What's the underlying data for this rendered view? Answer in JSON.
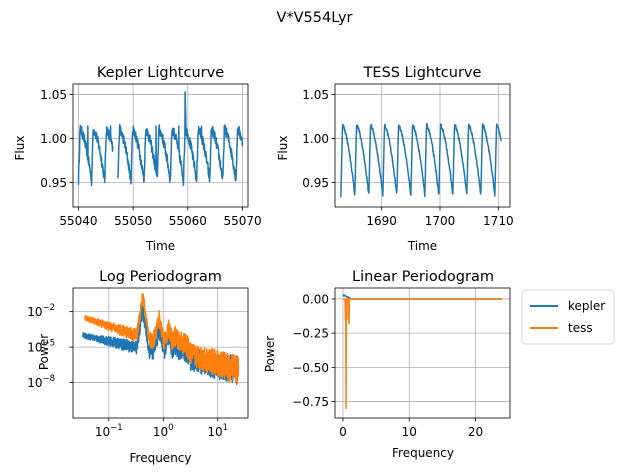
{
  "suptitle": "V*V554Lyr",
  "colors": {
    "kepler": "#1f77b4",
    "tess": "#ff7f0e",
    "grid": "#b0b0b0"
  },
  "legend": {
    "placement": "right of bottom-right panel",
    "entries": [
      "kepler",
      "tess"
    ]
  },
  "chart_data": [
    {
      "id": "kepler_lc",
      "type": "line",
      "title": "Kepler Lightcurve",
      "xlabel": "Time",
      "ylabel": "Flux",
      "xlim": [
        55039,
        55071
      ],
      "ylim": [
        0.922,
        1.062
      ],
      "xticks": [
        {
          "v": 55040,
          "label": "55040"
        },
        {
          "v": 55050,
          "label": "55050"
        },
        {
          "v": 55060,
          "label": "55060"
        },
        {
          "v": 55070,
          "label": "55070"
        }
      ],
      "yticks": [
        {
          "v": 0.95,
          "label": "0.95"
        },
        {
          "v": 1.0,
          "label": "1.00"
        },
        {
          "v": 1.05,
          "label": "1.05"
        }
      ],
      "grid": true,
      "series": [
        {
          "name": "kepler",
          "color": "#1f77b4",
          "period": 2.4,
          "x_start": 55040,
          "x_end": 55070,
          "upper": 1.01,
          "lower": 0.952,
          "spike": {
            "x": 55059.5,
            "y": 1.053
          }
        }
      ]
    },
    {
      "id": "tess_lc",
      "type": "line",
      "title": "TESS Lightcurve",
      "xlabel": "Time",
      "ylabel": "Flux",
      "xlim": [
        1682,
        1712
      ],
      "ylim": [
        0.922,
        1.062
      ],
      "xticks": [
        {
          "v": 1690,
          "label": "1690"
        },
        {
          "v": 1700,
          "label": "1700"
        },
        {
          "v": 1710,
          "label": "1710"
        }
      ],
      "yticks": [
        {
          "v": 0.95,
          "label": "0.95"
        },
        {
          "v": 1.0,
          "label": "1.00"
        },
        {
          "v": 1.05,
          "label": "1.05"
        }
      ],
      "grid": true,
      "series": [
        {
          "name": "tess",
          "color": "#1f77b4",
          "period": 2.4,
          "x_start": 1683,
          "x_end": 1710.5,
          "upper": 1.015,
          "lower": 0.935
        }
      ]
    },
    {
      "id": "log_periodogram",
      "type": "line",
      "title": "Log Periodogram",
      "xlabel": "Frequency",
      "ylabel": "Power",
      "xscale": "log",
      "yscale": "log",
      "xlim": [
        0.022,
        36
      ],
      "ylim": [
        1e-11,
        1
      ],
      "xticks": [
        {
          "v": 0.1,
          "label": "10",
          "exp": "−1"
        },
        {
          "v": 1,
          "label": "10",
          "exp": "0"
        },
        {
          "v": 10,
          "label": "10",
          "exp": "1"
        }
      ],
      "yticks": [
        {
          "v": 0.01,
          "label": "10",
          "exp": "−2"
        },
        {
          "v": 1e-05,
          "label": "10",
          "exp": "−5"
        },
        {
          "v": 1e-08,
          "label": "10",
          "exp": "−8"
        }
      ],
      "grid": true,
      "series": [
        {
          "name": "kepler",
          "color": "#1f77b4",
          "x_start": 0.033,
          "x_end": 24,
          "peak_freq": 0.42,
          "peak_power": 0.02,
          "floor_low": 0.0001,
          "floor_high": 1e-07
        },
        {
          "name": "tess",
          "color": "#ff7f0e",
          "x_start": 0.036,
          "x_end": 24,
          "peak_freq": 0.42,
          "peak_power": 0.3,
          "floor_low": 0.003,
          "floor_high": 1e-07
        }
      ]
    },
    {
      "id": "linear_periodogram",
      "type": "line",
      "title": "Linear Periodogram",
      "xlabel": "Frequency",
      "ylabel": "Power",
      "xlim": [
        -1.2,
        25.2
      ],
      "ylim": [
        -0.87,
        0.08
      ],
      "xticks": [
        {
          "v": 0,
          "label": "0"
        },
        {
          "v": 10,
          "label": "10"
        },
        {
          "v": 20,
          "label": "20"
        }
      ],
      "yticks": [
        {
          "v": 0.0,
          "label": "0.00"
        },
        {
          "v": -0.25,
          "label": "−0.25"
        },
        {
          "v": -0.5,
          "label": "−0.50"
        },
        {
          "v": -0.75,
          "label": "−0.75"
        }
      ],
      "grid": true,
      "series": [
        {
          "name": "kepler",
          "color": "#1f77b4",
          "x_start": 0.0,
          "x_end": 24,
          "baseline": 0.0,
          "max": 0.03
        },
        {
          "name": "tess",
          "color": "#ff7f0e",
          "x_start": 0.0,
          "x_end": 24,
          "baseline": 0.0,
          "min": -0.8,
          "dip_at": 0.42
        }
      ]
    }
  ]
}
